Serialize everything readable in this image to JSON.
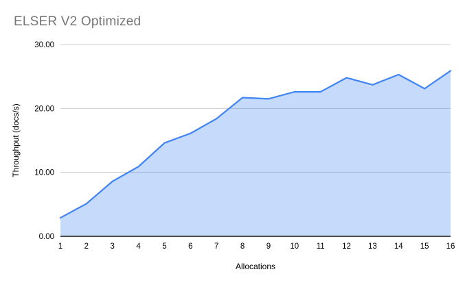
{
  "header": {
    "title": "ELSER V2 Optimized",
    "title_color": "#757575"
  },
  "chart_data": {
    "type": "area",
    "title": "ELSER V2 Optimized",
    "xlabel": "Allocations",
    "ylabel": "Throughput (docs/s)",
    "x": [
      1,
      2,
      3,
      4,
      5,
      6,
      7,
      8,
      9,
      10,
      11,
      12,
      13,
      14,
      15,
      16
    ],
    "series": [
      {
        "name": "Throughput",
        "values": [
          2.9,
          5.1,
          8.6,
          10.9,
          14.6,
          16.1,
          18.4,
          21.7,
          21.5,
          22.6,
          22.6,
          24.8,
          23.7,
          25.3,
          23.1,
          25.9
        ]
      }
    ],
    "ylim": [
      0,
      30
    ],
    "yticks": [
      {
        "value": 0,
        "label": "0.00"
      },
      {
        "value": 10,
        "label": "10.00"
      },
      {
        "value": 20,
        "label": "20.00"
      },
      {
        "value": 30,
        "label": "30.00"
      }
    ],
    "xticks": [
      "1",
      "2",
      "3",
      "4",
      "5",
      "6",
      "7",
      "8",
      "9",
      "10",
      "11",
      "12",
      "13",
      "14",
      "15",
      "16"
    ],
    "grid": true,
    "legend": "none",
    "line_color": "#4285f4",
    "fill_color": "rgba(66,133,244,0.3)",
    "gridline_color": "#cccccc",
    "axis_line_color": "#333333",
    "tick_label_color": "#000000",
    "axis_title_color": "#000000"
  }
}
